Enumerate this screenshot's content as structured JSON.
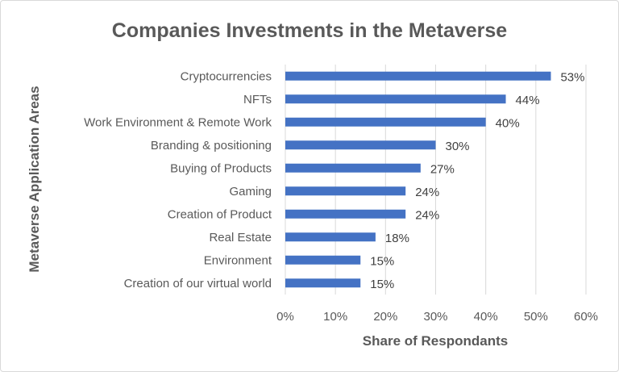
{
  "chart_data": {
    "type": "bar",
    "orientation": "horizontal",
    "title": "Companies Investments in the Metaverse",
    "xlabel": "Share of Respondants",
    "ylabel": "Metaverse Application Areas",
    "categories": [
      "Cryptocurrencies",
      "NFTs",
      "Work Environment & Remote Work",
      "Branding & positioning",
      "Buying of Products",
      "Gaming",
      "Creation of Product",
      "Real Estate",
      "Environment",
      "Creation of our virtual world"
    ],
    "values": [
      53,
      44,
      40,
      30,
      27,
      24,
      24,
      18,
      15,
      15
    ],
    "data_labels": [
      "53%",
      "44%",
      "40%",
      "30%",
      "27%",
      "24%",
      "24%",
      "18%",
      "15%",
      "15%"
    ],
    "xlim": [
      0,
      60
    ],
    "xticks": [
      0,
      10,
      20,
      30,
      40,
      50,
      60
    ],
    "xtick_labels": [
      "0%",
      "10%",
      "20%",
      "30%",
      "40%",
      "50%",
      "60%"
    ],
    "grid": "vertical",
    "legend": "none",
    "bar_color": "#4472c4"
  }
}
